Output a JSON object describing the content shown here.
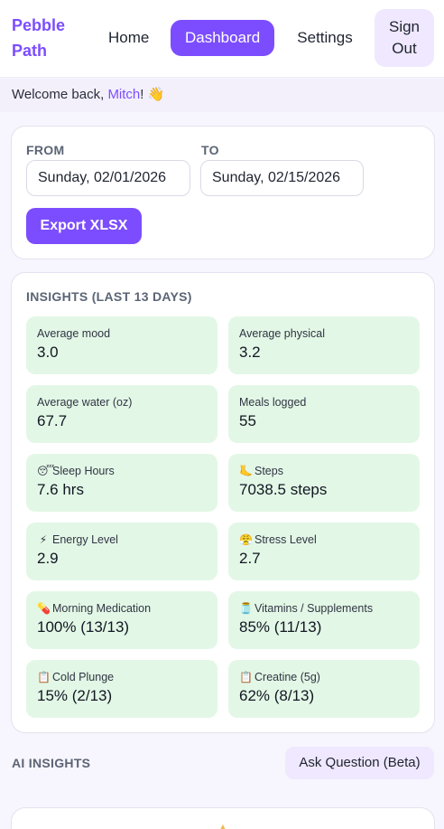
{
  "header": {
    "brand_line1": "Pebble",
    "brand_line2": "Path",
    "nav": {
      "home": "Home",
      "dashboard": "Dashboard",
      "settings": "Settings"
    },
    "signout_line1": "Sign",
    "signout_line2": "Out"
  },
  "welcome": {
    "prefix": "Welcome back, ",
    "name": "Mitch",
    "suffix": "! 👋"
  },
  "range": {
    "from_label": "FROM",
    "from_value": "Sunday, 02/01/2026",
    "to_label": "TO",
    "to_value": "Sunday, 02/15/2026",
    "export_label": "Export XLSX"
  },
  "insights": {
    "title": "INSIGHTS (LAST 13 DAYS)",
    "tiles": [
      {
        "icon": "",
        "label": "Average mood",
        "value": "3.0"
      },
      {
        "icon": "",
        "label": "Average physical",
        "value": "3.2"
      },
      {
        "icon": "",
        "label": "Average water (oz)",
        "value": "67.7"
      },
      {
        "icon": "",
        "label": "Meals logged",
        "value": "55"
      },
      {
        "icon": "😴",
        "label": "Sleep Hours",
        "value": "7.6 hrs"
      },
      {
        "icon": "🦶",
        "label": "Steps",
        "value": "7038.5 steps"
      },
      {
        "icon": "⚡",
        "label": "Energy Level",
        "value": "2.9"
      },
      {
        "icon": "😤",
        "label": "Stress Level",
        "value": "2.7"
      },
      {
        "icon": "💊",
        "label": "Morning Medication",
        "value": "100% (13/13)"
      },
      {
        "icon": "🫙",
        "label": "Vitamins / Supplements",
        "value": "85% (11/13)"
      },
      {
        "icon": "📋",
        "label": "Cold Plunge",
        "value": "15% (2/13)"
      },
      {
        "icon": "📋",
        "label": "Creatine (5g)",
        "value": "62% (8/13)"
      }
    ]
  },
  "ai": {
    "title": "AI INSIGHTS",
    "ask_label": "Ask Question (Beta)"
  },
  "colors": {
    "accent": "#7c4dff",
    "tile_bg": "#e3f7e6",
    "soft_purple": "#efe8fe"
  }
}
